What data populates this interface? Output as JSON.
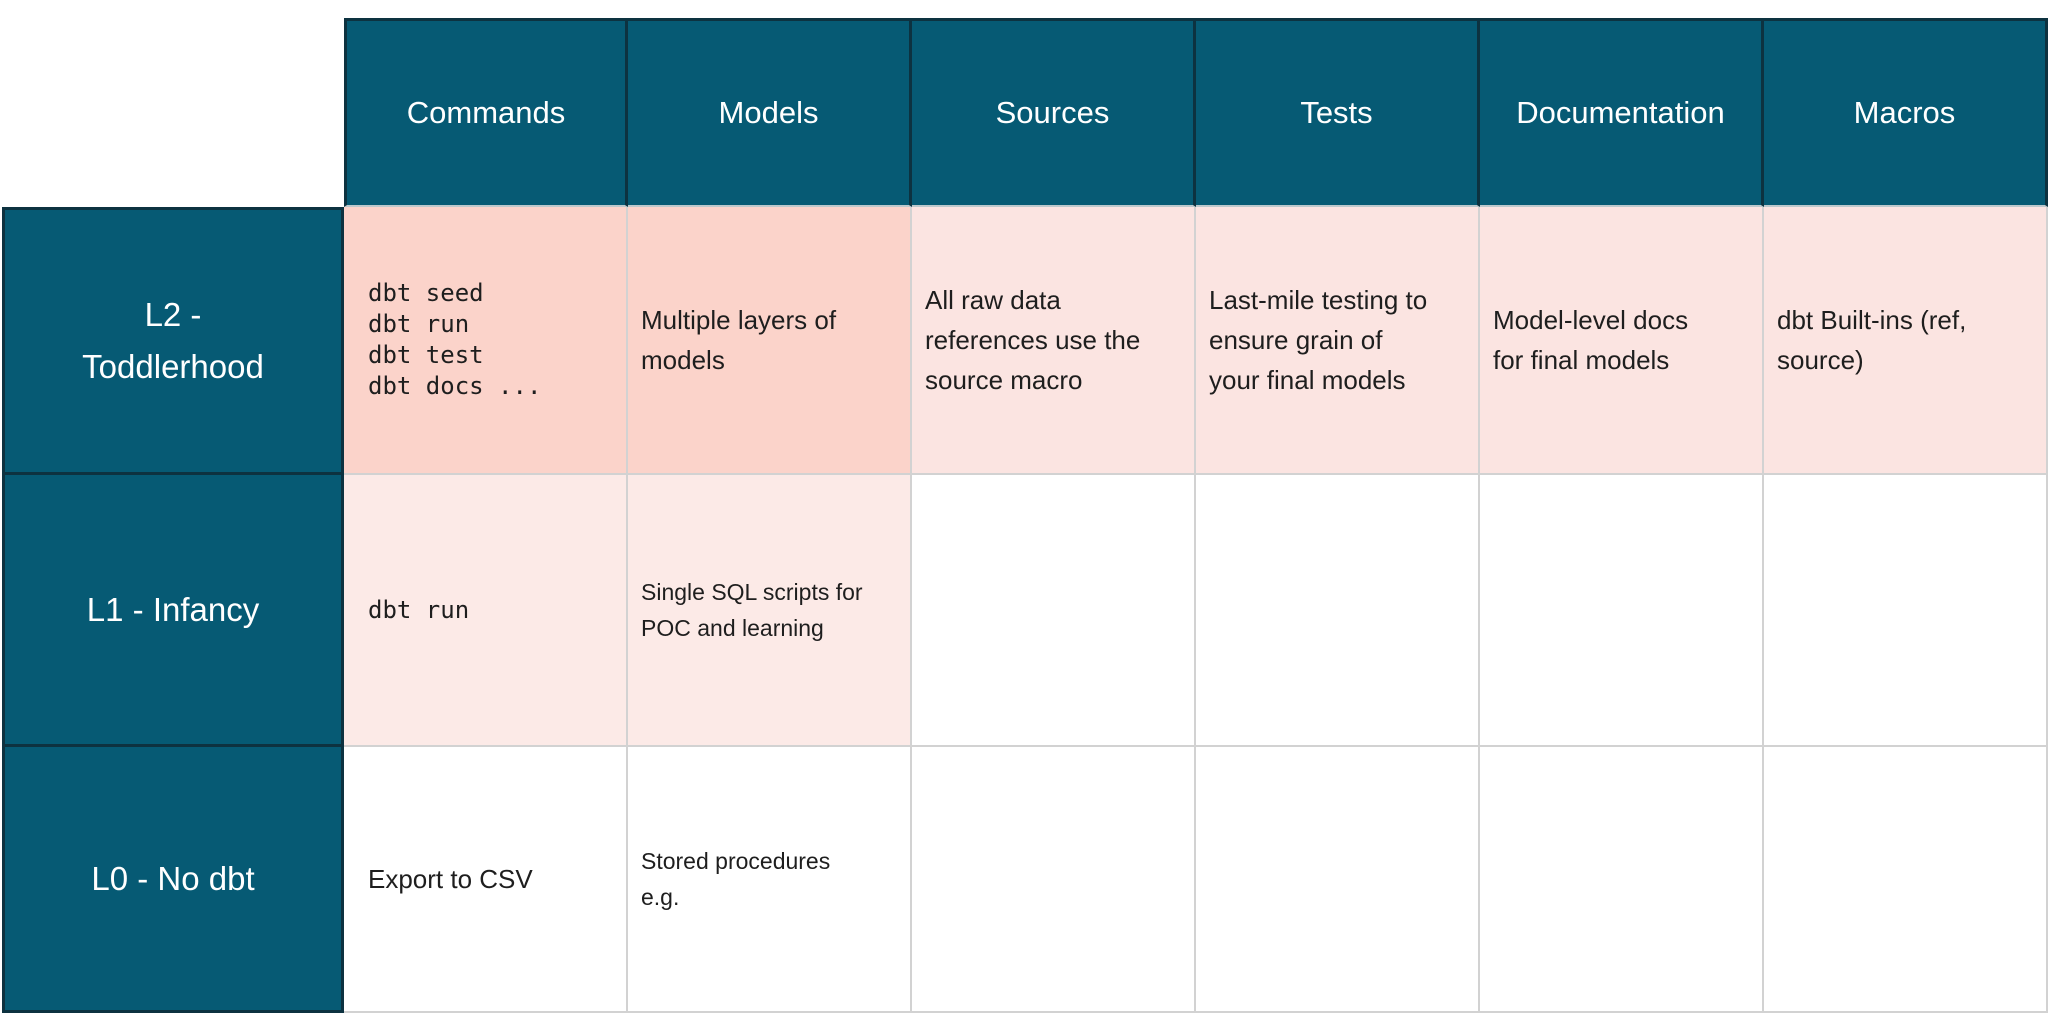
{
  "colors": {
    "teal": "#065A74",
    "teal-border": "#0D3240",
    "header-separator": "#BCC8CC",
    "grid-line": "#D2D2D2",
    "dark-pink": "#FBD3CA",
    "light-pink": "#FBE4E1",
    "pale-pink": "#FCEAE7",
    "cell-text": "#1E1E1E",
    "header-text": "#FFFFFF",
    "background": "#FFFFFF"
  },
  "table": {
    "columns": [
      {
        "label": "Commands"
      },
      {
        "label": "Models"
      },
      {
        "label": "Sources"
      },
      {
        "label": "Tests"
      },
      {
        "label": "Documentation"
      },
      {
        "label": "Macros"
      }
    ],
    "rows": [
      {
        "label_lines": [
          "L2 -",
          "Toddlerhood"
        ],
        "cells": [
          {
            "column": "Commands",
            "mono": true,
            "bg": "dark-pink",
            "lines": [
              "dbt seed",
              "dbt run",
              "dbt test",
              "dbt docs ..."
            ]
          },
          {
            "column": "Models",
            "bg": "dark-pink",
            "lines": [
              "Multiple layers of",
              "models"
            ]
          },
          {
            "column": "Sources",
            "bg": "light-pink",
            "lines": [
              "All raw data",
              "references use the",
              "source macro"
            ]
          },
          {
            "column": "Tests",
            "bg": "light-pink",
            "lines": [
              "Last-mile testing to",
              "ensure grain of",
              "your final models"
            ]
          },
          {
            "column": "Documentation",
            "bg": "light-pink",
            "lines": [
              "Model-level docs",
              "for final models"
            ]
          },
          {
            "column": "Macros",
            "bg": "light-pink",
            "lines": [
              "dbt Built-ins (ref,",
              "source)"
            ]
          }
        ]
      },
      {
        "label_lines": [
          "L1 - Infancy"
        ],
        "cells": [
          {
            "column": "Commands",
            "mono": true,
            "bg": "pale-pink",
            "lines": [
              "dbt run"
            ]
          },
          {
            "column": "Models",
            "bg": "pale-pink",
            "small": true,
            "lines": [
              "Single SQL scripts for",
              "POC and learning"
            ]
          },
          {
            "column": "Sources",
            "bg": "white",
            "lines": []
          },
          {
            "column": "Tests",
            "bg": "white",
            "lines": []
          },
          {
            "column": "Documentation",
            "bg": "white",
            "lines": []
          },
          {
            "column": "Macros",
            "bg": "white",
            "lines": []
          }
        ]
      },
      {
        "label_lines": [
          "L0 - No dbt"
        ],
        "cells": [
          {
            "column": "Commands",
            "bg": "white",
            "lines": [
              "Export to CSV"
            ]
          },
          {
            "column": "Models",
            "bg": "white",
            "small": true,
            "lines": [
              "Stored procedures",
              "e.g."
            ]
          },
          {
            "column": "Sources",
            "bg": "white",
            "lines": []
          },
          {
            "column": "Tests",
            "bg": "white",
            "lines": []
          },
          {
            "column": "Documentation",
            "bg": "white",
            "lines": []
          },
          {
            "column": "Macros",
            "bg": "white",
            "lines": []
          }
        ]
      }
    ]
  },
  "chart_data": {
    "type": "table",
    "columns": [
      "",
      "Commands",
      "Models",
      "Sources",
      "Tests",
      "Documentation",
      "Macros"
    ],
    "rows": [
      [
        "L2 - Toddlerhood",
        "dbt seed dbt run dbt test dbt docs ...",
        "Multiple layers of models",
        "All raw data references use the source macro",
        "Last-mile testing to ensure grain of your final models",
        "Model-level docs for final models",
        "dbt Built-ins (ref, source)"
      ],
      [
        "L1 - Infancy",
        "dbt run",
        "Single SQL scripts for POC and learning",
        "",
        "",
        "",
        ""
      ],
      [
        "L0 - No dbt",
        "Export to CSV",
        "Stored procedures e.g.",
        "",
        "",
        "",
        ""
      ]
    ]
  }
}
